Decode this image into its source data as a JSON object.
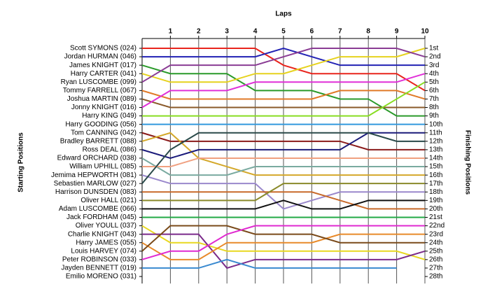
{
  "chart_data": {
    "type": "lap",
    "title": "Laps",
    "y_label": "Starting Positions",
    "y2_label": "Finishing Positions",
    "xlim": [
      0,
      10
    ],
    "xticks": [
      1,
      2,
      3,
      4,
      5,
      6,
      7,
      8,
      9,
      10
    ],
    "ylim": [
      1,
      28
    ],
    "grid": true,
    "finishing_positions": [
      "1st",
      "2nd",
      "3rd",
      "4th",
      "5th",
      "6th",
      "7th",
      "8th",
      "9th",
      "10th",
      "11th",
      "12th",
      "13th",
      "14th",
      "15th",
      "16th",
      "17th",
      "18th",
      "19th",
      "20th",
      "21st",
      "22nd",
      "23rd",
      "24th",
      "25th",
      "26th",
      "27th",
      "28th"
    ],
    "series": [
      {
        "name": "Scott SYMONS (024)",
        "color": "#e8251d",
        "values": [
          1,
          1,
          1,
          1,
          1,
          3,
          4,
          4,
          4,
          4,
          6
        ]
      },
      {
        "name": "Jordan HURMAN (046)",
        "color": "#2222b4",
        "values": [
          2,
          2,
          2,
          2,
          2,
          1,
          2,
          3,
          3,
          3,
          3
        ]
      },
      {
        "name": "James KNIGHT (017)",
        "color": "#2a9a2a",
        "values": [
          3,
          4,
          4,
          4,
          6,
          6,
          6,
          7,
          7,
          9,
          9
        ]
      },
      {
        "name": "Harry CARTER (041)",
        "color": "#e6d21e",
        "values": [
          4,
          5,
          5,
          5,
          4,
          4,
          3,
          2,
          2,
          2,
          1
        ]
      },
      {
        "name": "Ryan LUSCOMBE (099)",
        "color": "#8a3c94",
        "values": [
          5,
          3,
          3,
          3,
          3,
          2,
          1,
          1,
          1,
          1,
          2
        ]
      },
      {
        "name": "Tommy FARRELL (067)",
        "color": "#e07a28",
        "values": [
          6,
          7,
          7,
          7,
          7,
          7,
          7,
          6,
          6,
          6,
          7
        ]
      },
      {
        "name": "Joshua MARTIN (089)",
        "color": "#8a5a2a",
        "values": [
          7,
          8,
          8,
          8,
          8,
          8,
          8,
          8,
          8,
          8,
          8
        ]
      },
      {
        "name": "Jonny KNIGHT (016)",
        "color": "#e030d8",
        "values": [
          8,
          6,
          6,
          6,
          5,
          5,
          5,
          5,
          5,
          5,
          4
        ]
      },
      {
        "name": "Harry KING (049)",
        "color": "#88dd22",
        "values": [
          9,
          9,
          9,
          9,
          9,
          9,
          9,
          9,
          9,
          7,
          5
        ]
      },
      {
        "name": "Harry GOODING (056)",
        "color": "#3399dd",
        "values": [
          10,
          10,
          10,
          10,
          10,
          10,
          10,
          10,
          10,
          10,
          10
        ]
      },
      {
        "name": "Tom CANNING (042)",
        "color": "#8a1a1a",
        "values": [
          11,
          12,
          12,
          12,
          12,
          12,
          12,
          12,
          13,
          13,
          13
        ]
      },
      {
        "name": "Bradley BARRETT (088)",
        "color": "#d4a82a",
        "values": [
          12,
          11,
          14,
          15,
          16,
          16,
          16,
          16,
          16,
          16,
          16
        ]
      },
      {
        "name": "Ross DEAL (086)",
        "color": "#1a1a7a",
        "values": [
          13,
          14,
          13,
          13,
          13,
          13,
          13,
          13,
          11,
          11,
          11
        ]
      },
      {
        "name": "Edward ORCHARD (038)",
        "color": "#7aaaa0",
        "values": [
          14,
          16,
          16,
          16,
          15,
          15,
          15,
          15,
          15,
          15,
          15
        ]
      },
      {
        "name": "William UPHILL (085)",
        "color": "#f0a080",
        "values": [
          15,
          15,
          14,
          14,
          14,
          14,
          14,
          14,
          14,
          14,
          14
        ]
      },
      {
        "name": "Jemima HEPWORTH (081)",
        "color": "#9a88cc",
        "values": [
          16,
          17,
          17,
          17,
          17,
          20,
          19,
          18,
          18,
          18,
          18
        ]
      },
      {
        "name": "Sebastien MARLOW (027)",
        "color": "#2a4a4a",
        "values": [
          17,
          13,
          11,
          11,
          11,
          11,
          11,
          11,
          11,
          12,
          12
        ]
      },
      {
        "name": "Harrison DUNSDEN (083)",
        "color": "#c86a2a",
        "values": [
          18,
          18,
          18,
          18,
          18,
          18,
          18,
          19,
          20,
          20,
          20
        ]
      },
      {
        "name": "Oliver HALL (021)",
        "color": "#8a8a2a",
        "values": [
          19,
          19,
          19,
          19,
          19,
          17,
          17,
          17,
          17,
          17,
          17
        ]
      },
      {
        "name": "Adam LUSCOMBE (066)",
        "color": "#111111",
        "values": [
          20,
          20,
          20,
          20,
          20,
          19,
          20,
          20,
          19,
          19,
          19
        ]
      },
      {
        "name": "Jack FORDHAM (045)",
        "color": "#22aa44",
        "values": [
          21,
          21,
          21,
          21,
          21,
          21,
          21,
          21,
          21,
          21,
          21
        ]
      },
      {
        "name": "Oliver YOULL (037)",
        "color": "#e8d820",
        "values": [
          22,
          24,
          24,
          25,
          25,
          25,
          25,
          25,
          25,
          25,
          26
        ]
      },
      {
        "name": "Charlie KNIGHT (043)",
        "color": "#7a2a8a",
        "values": [
          23,
          23,
          23,
          27,
          26,
          26,
          26,
          26,
          26,
          26,
          25
        ]
      },
      {
        "name": "Harry JAMES (055)",
        "color": "#e88a2a",
        "values": [
          24,
          26,
          26,
          24,
          24,
          24,
          24,
          23,
          23,
          23,
          23
        ]
      },
      {
        "name": "Louis HARVEY (074)",
        "color": "#7a4a1a",
        "values": [
          25,
          22,
          22,
          22,
          23,
          23,
          23,
          24,
          24,
          24,
          24
        ]
      },
      {
        "name": "Peter ROBINSON (033)",
        "color": "#e02ad0",
        "values": [
          26,
          25,
          25,
          23,
          22,
          22,
          22,
          22,
          22,
          22,
          22
        ]
      },
      {
        "name": "Jayden BENNETT (019)",
        "color": "#3a8ad0",
        "values": [
          27,
          27,
          27,
          26,
          27,
          27,
          27,
          27,
          27,
          27,
          null
        ]
      },
      {
        "name": "Emilio MORENO (031)",
        "color": "#888888",
        "values": [
          28,
          null,
          null,
          null,
          null,
          null,
          null,
          null,
          null,
          null,
          null
        ]
      }
    ]
  }
}
